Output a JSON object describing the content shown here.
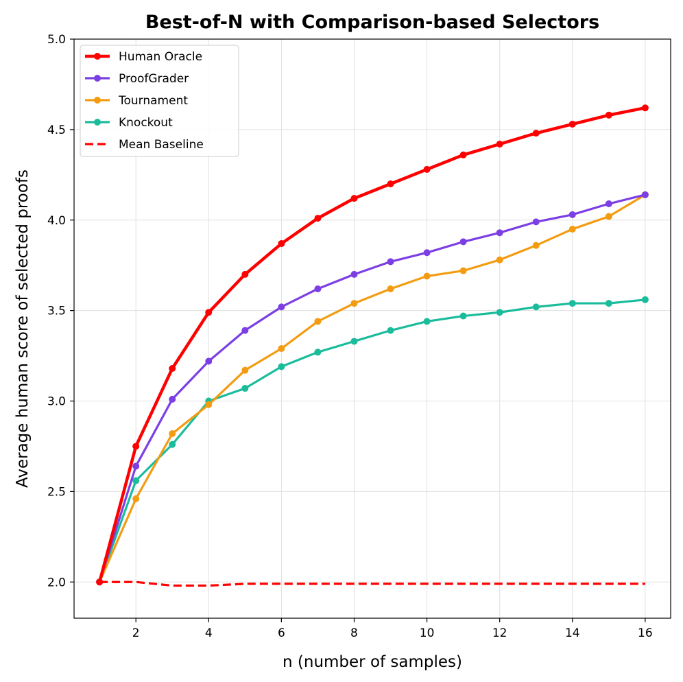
{
  "chart_data": {
    "type": "line",
    "title": "Best-of-N with Comparison-based Selectors",
    "xlabel": "n (number of samples)",
    "ylabel": "Average human score of selected proofs",
    "xlim": [
      0.3,
      16.7
    ],
    "ylim": [
      1.8,
      5.0
    ],
    "xticks": [
      2,
      4,
      6,
      8,
      10,
      12,
      14,
      16
    ],
    "xtick_labels": [
      "2",
      "4",
      "6",
      "8",
      "10",
      "12",
      "14",
      "16"
    ],
    "yticks": [
      2.0,
      2.5,
      3.0,
      3.5,
      4.0,
      4.5,
      5.0
    ],
    "ytick_labels": [
      "2.0",
      "2.5",
      "3.0",
      "3.5",
      "4.0",
      "4.5",
      "5.0"
    ],
    "grid": true,
    "legend_position": "top-left",
    "x": [
      1,
      2,
      3,
      4,
      5,
      6,
      7,
      8,
      9,
      10,
      11,
      12,
      13,
      14,
      15,
      16
    ],
    "series": [
      {
        "name": "Human Oracle",
        "color": "#ff0000",
        "style": "solid",
        "markers": true,
        "width": 4.5,
        "values": [
          2.0,
          2.75,
          3.18,
          3.49,
          3.7,
          3.87,
          4.01,
          4.12,
          4.2,
          4.28,
          4.36,
          4.42,
          4.48,
          4.53,
          4.58,
          4.62
        ]
      },
      {
        "name": "ProofGrader",
        "color": "#7b3fe4",
        "style": "solid",
        "markers": true,
        "width": 3.2,
        "values": [
          2.0,
          2.64,
          3.01,
          3.22,
          3.39,
          3.52,
          3.62,
          3.7,
          3.77,
          3.82,
          3.88,
          3.93,
          3.99,
          4.03,
          4.09,
          4.14
        ]
      },
      {
        "name": "Tournament",
        "color": "#f39c12",
        "style": "solid",
        "markers": true,
        "width": 3.2,
        "values": [
          2.0,
          2.46,
          2.82,
          2.98,
          3.17,
          3.29,
          3.44,
          3.54,
          3.62,
          3.69,
          3.72,
          3.78,
          3.86,
          3.95,
          4.02,
          4.14
        ]
      },
      {
        "name": "Knockout",
        "color": "#1abc9c",
        "style": "solid",
        "markers": true,
        "width": 3.2,
        "values": [
          2.0,
          2.56,
          2.76,
          3.0,
          3.07,
          3.19,
          3.27,
          3.33,
          3.39,
          3.44,
          3.47,
          3.49,
          3.52,
          3.54,
          3.54,
          3.56
        ]
      },
      {
        "name": "Mean Baseline",
        "color": "#ff0000",
        "style": "dashed",
        "markers": false,
        "width": 3.2,
        "values": [
          2.0,
          2.0,
          1.98,
          1.98,
          1.99,
          1.99,
          1.99,
          1.99,
          1.99,
          1.99,
          1.99,
          1.99,
          1.99,
          1.99,
          1.99,
          1.99
        ]
      }
    ]
  }
}
